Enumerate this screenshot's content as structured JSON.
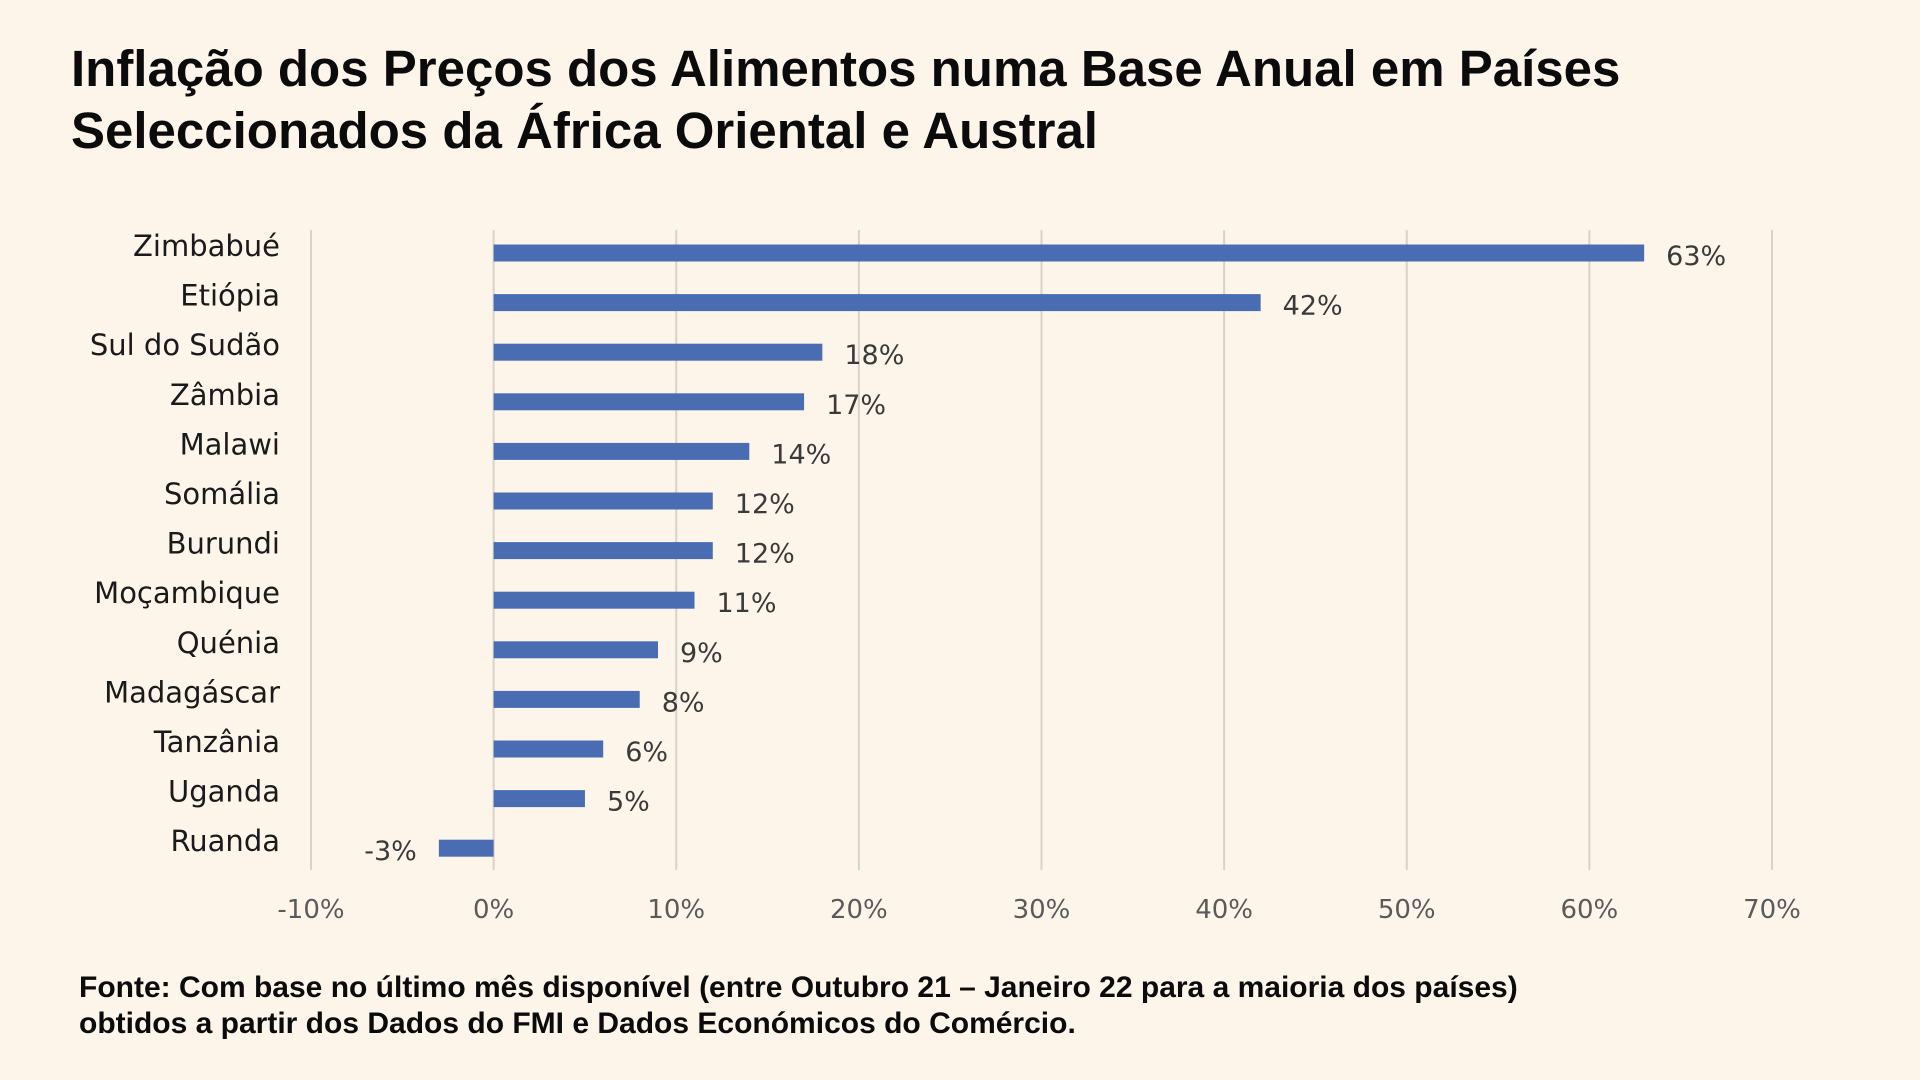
{
  "title_lines": [
    "Inflação dos Preços dos Alimentos numa Base Anual em Países",
    "Seleccionados da África Oriental e Austral"
  ],
  "footer_lines": [
    "Fonte: Com base no último mês disponível (entre Outubro 21 – Janeiro 22 para a maioria dos países)",
    "obtidos a partir dos Dados do FMI e Dados Económicos do Comércio."
  ],
  "chart_data": {
    "type": "bar",
    "orientation": "horizontal",
    "categories": [
      "Zimbabué",
      "Etiópia",
      "Sul do Sudão",
      "Zâmbia",
      "Malawi",
      "Somália",
      "Burundi",
      "Moçambique",
      "Quénia",
      "Madagáscar",
      "Tanzânia",
      "Uganda",
      "Ruanda"
    ],
    "values": [
      63,
      42,
      18,
      17,
      14,
      12,
      12,
      11,
      9,
      8,
      6,
      5,
      -3
    ],
    "value_labels": [
      "63%",
      "42%",
      "18%",
      "17%",
      "14%",
      "12%",
      "12%",
      "11%",
      "9%",
      "8%",
      "6%",
      "5%",
      "-3%"
    ],
    "x_ticks": [
      -10,
      0,
      10,
      20,
      30,
      40,
      50,
      60,
      70
    ],
    "x_tick_labels": [
      "-10%",
      "0%",
      "10%",
      "20%",
      "30%",
      "40%",
      "50%",
      "60%",
      "70%"
    ],
    "xlim": [
      -10,
      70
    ],
    "grid": "vertical",
    "legend": "none",
    "bar_color": "#4a6cb3",
    "grid_color": "#d8d2cb"
  }
}
